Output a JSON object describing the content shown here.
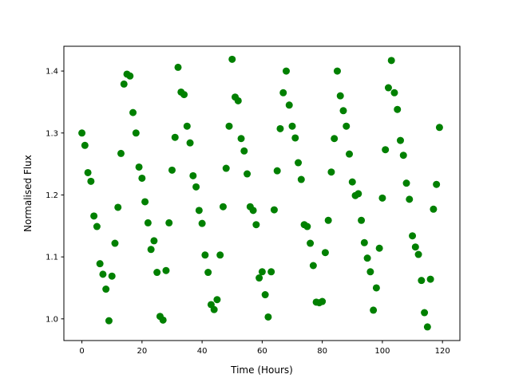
{
  "chart_data": {
    "type": "scatter",
    "title": "",
    "xlabel": "Time (Hours)",
    "ylabel": "Normalised Flux",
    "xlim": [
      -6,
      125.8
    ],
    "ylim": [
      0.965,
      1.44
    ],
    "xticks": [
      0,
      20,
      40,
      60,
      80,
      100,
      120
    ],
    "yticks": [
      1.0,
      1.1,
      1.2,
      1.3,
      1.4
    ],
    "xtick_labels": [
      "0",
      "20",
      "40",
      "60",
      "80",
      "100",
      "120"
    ],
    "ytick_labels": [
      "1.0",
      "1.1",
      "1.2",
      "1.3",
      "1.4"
    ],
    "grid": false,
    "marker_color": "#008000",
    "x_start": 0,
    "x_step": 1,
    "y": [
      1.3,
      1.28,
      1.236,
      1.222,
      1.166,
      1.149,
      1.089,
      1.072,
      1.048,
      0.997,
      1.069,
      1.122,
      1.18,
      1.267,
      1.379,
      1.395,
      1.392,
      1.333,
      1.3,
      1.245,
      1.227,
      1.189,
      1.155,
      1.112,
      1.126,
      1.075,
      1.004,
      0.998,
      1.078,
      1.155,
      1.24,
      1.293,
      1.406,
      1.366,
      1.362,
      1.311,
      1.284,
      1.231,
      1.213,
      1.175,
      1.154,
      1.103,
      1.075,
      1.023,
      1.015,
      1.031,
      1.103,
      1.181,
      1.243,
      1.311,
      1.419,
      1.358,
      1.352,
      1.291,
      1.271,
      1.234,
      1.181,
      1.175,
      1.152,
      1.066,
      1.076,
      1.039,
      1.003,
      1.076,
      1.176,
      1.239,
      1.307,
      1.365,
      1.4,
      1.345,
      1.311,
      1.292,
      1.252,
      1.225,
      1.152,
      1.149,
      1.122,
      1.086,
      1.027,
      1.026,
      1.028,
      1.107,
      1.159,
      1.237,
      1.291,
      1.4,
      1.36,
      1.336,
      1.311,
      1.266,
      1.221,
      1.199,
      1.202,
      1.159,
      1.123,
      1.098,
      1.076,
      1.014,
      1.05,
      1.114,
      1.195,
      1.273,
      1.373,
      1.417,
      1.365,
      1.338,
      1.288,
      1.264,
      1.219,
      1.193,
      1.134,
      1.116,
      1.104,
      1.062,
      1.01,
      0.987,
      1.064,
      1.177,
      1.217,
      1.309
    ]
  }
}
